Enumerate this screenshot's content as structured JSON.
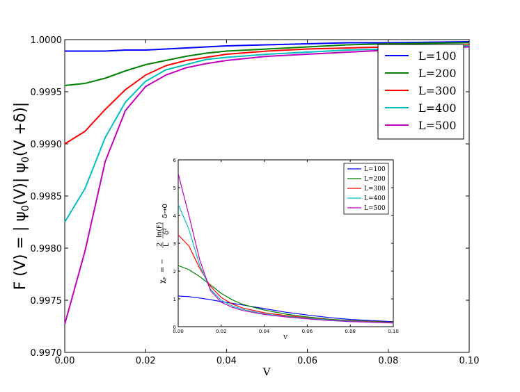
{
  "chart_data": [
    {
      "type": "line",
      "xlabel": "V",
      "ylabel": "F (V) = | ψ₀(V)| ψ₀(V + δ)|",
      "xlim": [
        0,
        0.1
      ],
      "ylim": [
        0.997,
        1.0
      ],
      "xticks": [
        "0.00",
        "0.02",
        "0.04",
        "0.06",
        "0.08",
        "0.10"
      ],
      "yticks": [
        "0.9970",
        "0.9975",
        "0.9980",
        "0.9985",
        "0.9990",
        "0.9995",
        "1.0000"
      ],
      "grid": false,
      "legend_position": "top-right",
      "x": [
        0,
        0.005,
        0.01,
        0.015,
        0.02,
        0.025,
        0.03,
        0.035,
        0.04,
        0.05,
        0.06,
        0.07,
        0.08,
        0.1
      ],
      "series": [
        {
          "name": "L=100",
          "color": "#0000ff",
          "values": [
            0.99989,
            0.99989,
            0.99989,
            0.9999,
            0.9999,
            0.99991,
            0.99992,
            0.99993,
            0.99994,
            0.99995,
            0.99996,
            0.99997,
            0.99997,
            0.99998
          ]
        },
        {
          "name": "L=200",
          "color": "#008000",
          "values": [
            0.99956,
            0.99958,
            0.99963,
            0.9997,
            0.99976,
            0.9998,
            0.99984,
            0.99987,
            0.99989,
            0.99991,
            0.99993,
            0.99995,
            0.99996,
            0.99997
          ]
        },
        {
          "name": "L=300",
          "color": "#ff0000",
          "values": [
            0.999,
            0.99912,
            0.99933,
            0.99952,
            0.99966,
            0.99975,
            0.9998,
            0.99983,
            0.99986,
            0.99989,
            0.99991,
            0.99992,
            0.99993,
            0.99995
          ]
        },
        {
          "name": "L=400",
          "color": "#00bfbf",
          "values": [
            0.99825,
            0.99857,
            0.99906,
            0.9994,
            0.9996,
            0.99971,
            0.99976,
            0.99981,
            0.99983,
            0.99986,
            0.99988,
            0.9999,
            0.99991,
            0.99994
          ]
        },
        {
          "name": "L=500",
          "color": "#bf00bf",
          "values": [
            0.99727,
            0.99797,
            0.99883,
            0.99932,
            0.99955,
            0.99966,
            0.99973,
            0.99977,
            0.9998,
            0.99984,
            0.99986,
            0.99988,
            0.9999,
            0.99993
          ]
        }
      ]
    },
    {
      "type": "line",
      "xlabel": "V",
      "ylabel": "χF = − 2/L ln(F)/δ² δ→0",
      "xlim": [
        0,
        0.1
      ],
      "ylim": [
        0,
        6
      ],
      "xticks": [
        "0.00",
        "0.02",
        "0.04",
        "0.06",
        "0.08",
        "0.10"
      ],
      "yticks": [
        "0",
        "1",
        "2",
        "3",
        "4",
        "5",
        "6"
      ],
      "grid": false,
      "legend_position": "top-right",
      "x": [
        0,
        0.005,
        0.01,
        0.015,
        0.02,
        0.025,
        0.03,
        0.04,
        0.05,
        0.06,
        0.07,
        0.08,
        0.1
      ],
      "series": [
        {
          "name": "L=100",
          "color": "#0000ff",
          "values": [
            1.1,
            1.08,
            1.03,
            0.97,
            0.9,
            0.84,
            0.78,
            0.65,
            0.52,
            0.42,
            0.33,
            0.26,
            0.18
          ]
        },
        {
          "name": "L=200",
          "color": "#008000",
          "values": [
            2.2,
            2.05,
            1.8,
            1.5,
            1.2,
            0.97,
            0.8,
            0.6,
            0.45,
            0.35,
            0.27,
            0.22,
            0.16
          ]
        },
        {
          "name": "L=300",
          "color": "#ff0000",
          "values": [
            3.3,
            2.9,
            2.1,
            1.45,
            1.05,
            0.82,
            0.67,
            0.5,
            0.4,
            0.32,
            0.25,
            0.2,
            0.15
          ]
        },
        {
          "name": "L=400",
          "color": "#00bfbf",
          "values": [
            4.4,
            3.5,
            2.2,
            1.35,
            0.95,
            0.75,
            0.62,
            0.46,
            0.37,
            0.3,
            0.24,
            0.19,
            0.14
          ]
        },
        {
          "name": "L=500",
          "color": "#bf00bf",
          "values": [
            5.5,
            4.0,
            2.4,
            1.3,
            0.88,
            0.7,
            0.58,
            0.44,
            0.35,
            0.28,
            0.22,
            0.18,
            0.13
          ]
        }
      ]
    }
  ],
  "labels": {
    "main_xlabel": "V",
    "main_ylabel_parts": [
      "F (V) = |  ψ",
      "0",
      "(V)| ψ",
      "0",
      "(V  +δ)|"
    ],
    "inset_xlabel": "V",
    "inset_ylabel_parts": [
      "χ",
      "F",
      " = − ",
      "2",
      "L",
      "ln(F)",
      "δ²",
      "δ→0"
    ]
  }
}
